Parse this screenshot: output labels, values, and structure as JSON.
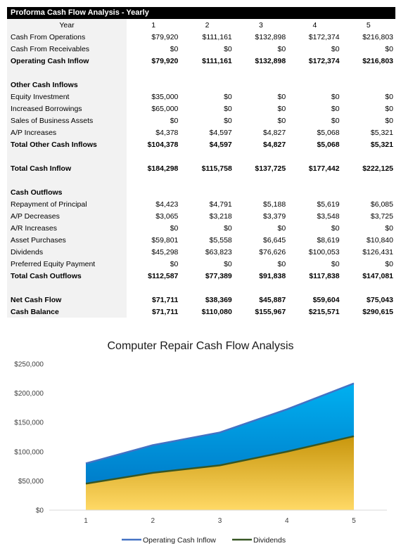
{
  "report": {
    "title": "Proforma Cash Flow Analysis - Yearly",
    "header": {
      "label": "Year",
      "years": [
        "1",
        "2",
        "3",
        "4",
        "5"
      ]
    },
    "rows": [
      {
        "label": "Cash From Operations",
        "values": [
          "$79,920",
          "$111,161",
          "$132,898",
          "$172,374",
          "$216,803"
        ],
        "bold": false
      },
      {
        "label": "Cash From Receivables",
        "values": [
          "$0",
          "$0",
          "$0",
          "$0",
          "$0"
        ],
        "bold": false
      },
      {
        "label": "Operating Cash Inflow",
        "values": [
          "$79,920",
          "$111,161",
          "$132,898",
          "$172,374",
          "$216,803"
        ],
        "bold": true
      },
      {
        "spacer": true
      },
      {
        "label": "Other Cash Inflows",
        "values": [
          "",
          "",
          "",
          "",
          ""
        ],
        "bold": true
      },
      {
        "label": "Equity Investment",
        "values": [
          "$35,000",
          "$0",
          "$0",
          "$0",
          "$0"
        ],
        "bold": false
      },
      {
        "label": "Increased Borrowings",
        "values": [
          "$65,000",
          "$0",
          "$0",
          "$0",
          "$0"
        ],
        "bold": false
      },
      {
        "label": "Sales of Business Assets",
        "values": [
          "$0",
          "$0",
          "$0",
          "$0",
          "$0"
        ],
        "bold": false
      },
      {
        "label": "A/P Increases",
        "values": [
          "$4,378",
          "$4,597",
          "$4,827",
          "$5,068",
          "$5,321"
        ],
        "bold": false
      },
      {
        "label": "Total Other Cash Inflows",
        "values": [
          "$104,378",
          "$4,597",
          "$4,827",
          "$5,068",
          "$5,321"
        ],
        "bold": true
      },
      {
        "spacer": true
      },
      {
        "label": "Total Cash Inflow",
        "values": [
          "$184,298",
          "$115,758",
          "$137,725",
          "$177,442",
          "$222,125"
        ],
        "bold": true
      },
      {
        "spacer": true
      },
      {
        "label": "Cash Outflows",
        "values": [
          "",
          "",
          "",
          "",
          ""
        ],
        "bold": true
      },
      {
        "label": "Repayment of Principal",
        "values": [
          "$4,423",
          "$4,791",
          "$5,188",
          "$5,619",
          "$6,085"
        ],
        "bold": false
      },
      {
        "label": "A/P Decreases",
        "values": [
          "$3,065",
          "$3,218",
          "$3,379",
          "$3,548",
          "$3,725"
        ],
        "bold": false
      },
      {
        "label": "A/R Increases",
        "values": [
          "$0",
          "$0",
          "$0",
          "$0",
          "$0"
        ],
        "bold": false
      },
      {
        "label": "Asset Purchases",
        "values": [
          "$59,801",
          "$5,558",
          "$6,645",
          "$8,619",
          "$10,840"
        ],
        "bold": false
      },
      {
        "label": "Dividends",
        "values": [
          "$45,298",
          "$63,823",
          "$76,626",
          "$100,053",
          "$126,431"
        ],
        "bold": false
      },
      {
        "label": "Preferred Equity Payment",
        "values": [
          "$0",
          "$0",
          "$0",
          "$0",
          "$0"
        ],
        "bold": false
      },
      {
        "label": "Total Cash Outflows",
        "values": [
          "$112,587",
          "$77,389",
          "$91,838",
          "$117,838",
          "$147,081"
        ],
        "bold": true
      },
      {
        "spacer": true
      },
      {
        "label": "Net Cash Flow",
        "values": [
          "$71,711",
          "$38,369",
          "$45,887",
          "$59,604",
          "$75,043"
        ],
        "bold": true
      },
      {
        "label": "Cash Balance",
        "values": [
          "$71,711",
          "$110,080",
          "$155,967",
          "$215,571",
          "$290,615"
        ],
        "bold": true
      }
    ]
  },
  "chart_data": {
    "type": "area",
    "title": "Computer Repair Cash Flow Analysis",
    "categories": [
      "1",
      "2",
      "3",
      "4",
      "5"
    ],
    "ylim": [
      0,
      250000
    ],
    "yticks": [
      0,
      50000,
      100000,
      150000,
      200000,
      250000
    ],
    "ytick_labels": [
      "$0",
      "$50,000",
      "$100,000",
      "$150,000",
      "$200,000",
      "$250,000"
    ],
    "grid": false,
    "legend_position": "bottom",
    "series": [
      {
        "name": "Operating Cash Inflow",
        "values": [
          79920,
          111161,
          132898,
          172374,
          216803
        ],
        "line_color": "#4472c4",
        "fill_top": "#00b0f0",
        "fill_bottom": "#0070c0"
      },
      {
        "name": "Dividends",
        "values": [
          45298,
          63823,
          76626,
          100053,
          126431
        ],
        "line_color": "#375623",
        "fill_top": "#c8960c",
        "fill_bottom": "#ffd966"
      }
    ]
  }
}
